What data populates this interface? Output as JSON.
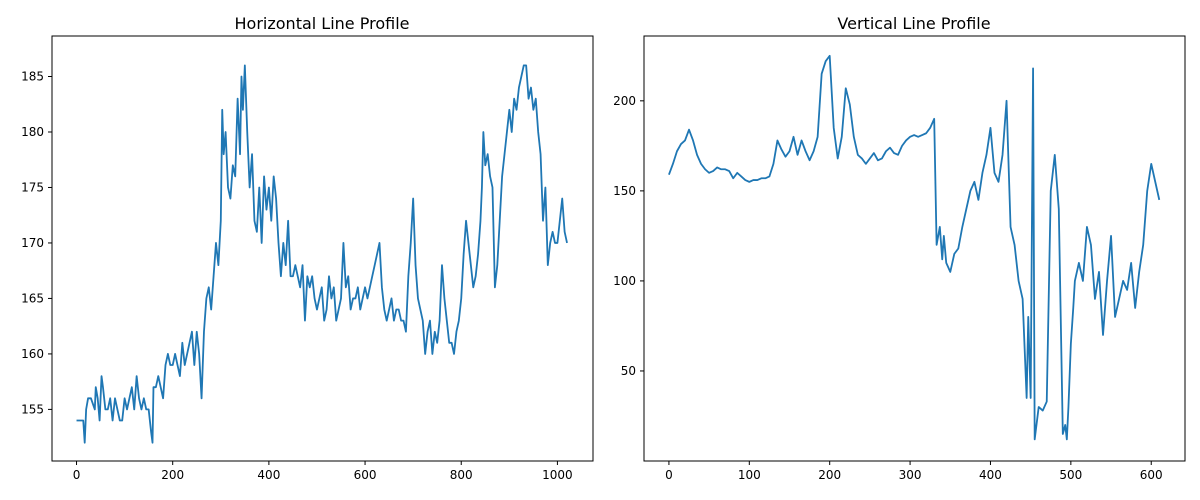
{
  "colors": {
    "series": "#1f77b4",
    "axis": "#000000",
    "background": "#ffffff"
  },
  "chart_data": [
    {
      "type": "line",
      "title": "Horizontal Line Profile",
      "xlabel": "",
      "ylabel": "",
      "xlim": [
        -51,
        1074
      ],
      "ylim": [
        150.35,
        188.65
      ],
      "xticks": [
        0,
        200,
        400,
        600,
        800,
        1000
      ],
      "yticks": [
        155,
        160,
        165,
        170,
        175,
        180,
        185
      ],
      "grid": false,
      "legend": "none",
      "series": [
        {
          "x": [
            0,
            10,
            14,
            17,
            20,
            24,
            30,
            38,
            40,
            44,
            48,
            52,
            55,
            60,
            65,
            70,
            75,
            80,
            85,
            90,
            95,
            100,
            105,
            110,
            115,
            120,
            125,
            130,
            135,
            140,
            145,
            150,
            155,
            158,
            160,
            165,
            170,
            175,
            180,
            185,
            190,
            195,
            200,
            205,
            210,
            215,
            220,
            225,
            230,
            235,
            240,
            245,
            250,
            255,
            260,
            265,
            270,
            275,
            280,
            285,
            290,
            295,
            300,
            303,
            306,
            310,
            315,
            320,
            325,
            330,
            335,
            340,
            343,
            346,
            350,
            355,
            360,
            365,
            370,
            375,
            380,
            385,
            390,
            395,
            400,
            405,
            410,
            415,
            420,
            425,
            430,
            435,
            440,
            445,
            450,
            455,
            460,
            465,
            470,
            475,
            480,
            485,
            490,
            495,
            500,
            505,
            510,
            515,
            520,
            525,
            530,
            535,
            540,
            545,
            550,
            555,
            560,
            565,
            570,
            575,
            580,
            585,
            590,
            595,
            600,
            605,
            610,
            615,
            620,
            625,
            630,
            635,
            640,
            645,
            650,
            655,
            660,
            665,
            670,
            675,
            680,
            685,
            690,
            695,
            700,
            705,
            710,
            715,
            720,
            725,
            730,
            735,
            740,
            745,
            750,
            755,
            760,
            765,
            770,
            775,
            780,
            785,
            790,
            795,
            800,
            805,
            810,
            815,
            820,
            825,
            830,
            835,
            840,
            843,
            846,
            850,
            855,
            860,
            865,
            870,
            875,
            880,
            885,
            890,
            895,
            900,
            905,
            910,
            915,
            920,
            925,
            930,
            935,
            940,
            945,
            950,
            955,
            960,
            965,
            970,
            975,
            980,
            985,
            990,
            995,
            1000,
            1005,
            1010,
            1015,
            1020
          ],
          "y": [
            154,
            154,
            154,
            152,
            155,
            156,
            156,
            155,
            157,
            156,
            154,
            158,
            157,
            155,
            155,
            156,
            154,
            156,
            155,
            154,
            154,
            156,
            155,
            156,
            157,
            155,
            158,
            156,
            155,
            156,
            155,
            155,
            153,
            152,
            157,
            157,
            158,
            157,
            156,
            159,
            160,
            159,
            159,
            160,
            159,
            158,
            161,
            159,
            160,
            161,
            162,
            159,
            162,
            160,
            156,
            162,
            165,
            166,
            164,
            167,
            170,
            168,
            172,
            182,
            178,
            180,
            175,
            174,
            177,
            176,
            183,
            178,
            185,
            182,
            186,
            180,
            175,
            178,
            172,
            171,
            175,
            170,
            176,
            173,
            175,
            172,
            176,
            174,
            170,
            167,
            170,
            168,
            172,
            167,
            167,
            168,
            167,
            166,
            168,
            163,
            167,
            166,
            167,
            165,
            164,
            165,
            166,
            163,
            164,
            167,
            165,
            166,
            163,
            164,
            165,
            170,
            166,
            167,
            164,
            165,
            165,
            166,
            164,
            165,
            166,
            165,
            166,
            167,
            168,
            169,
            170,
            166,
            164,
            163,
            164,
            165,
            163,
            164,
            164,
            163,
            163,
            162,
            167,
            170,
            174,
            168,
            165,
            164,
            163,
            160,
            162,
            163,
            160,
            162,
            161,
            163,
            168,
            165,
            163,
            161,
            161,
            160,
            162,
            163,
            165,
            169,
            172,
            170,
            168,
            166,
            167,
            169,
            172,
            175,
            180,
            177,
            178,
            176,
            175,
            166,
            168,
            172,
            176,
            178,
            180,
            182,
            180,
            183,
            182,
            184,
            185,
            186,
            186,
            183,
            184,
            182,
            183,
            180,
            178,
            172,
            175,
            168,
            170,
            171,
            170,
            170,
            172,
            174,
            171,
            170
          ]
        }
      ]
    },
    {
      "type": "line",
      "title": "Vertical Line Profile",
      "xlabel": "",
      "ylabel": "",
      "xlim": [
        -31,
        642
      ],
      "ylim": [
        0,
        236
      ],
      "xticks": [
        0,
        100,
        200,
        300,
        400,
        500,
        600
      ],
      "yticks": [
        50,
        100,
        150,
        200
      ],
      "grid": false,
      "legend": "none",
      "series": [
        {
          "x": [
            0,
            5,
            10,
            15,
            20,
            25,
            30,
            35,
            40,
            45,
            50,
            55,
            60,
            65,
            70,
            75,
            80,
            85,
            90,
            95,
            100,
            105,
            110,
            115,
            120,
            125,
            130,
            135,
            140,
            145,
            150,
            155,
            160,
            165,
            170,
            175,
            180,
            185,
            190,
            195,
            200,
            205,
            210,
            215,
            220,
            225,
            230,
            235,
            240,
            245,
            250,
            255,
            260,
            265,
            270,
            275,
            280,
            285,
            290,
            295,
            300,
            305,
            310,
            315,
            320,
            325,
            330,
            333,
            335,
            337,
            340,
            342,
            345,
            350,
            355,
            360,
            365,
            370,
            375,
            380,
            385,
            390,
            395,
            400,
            405,
            410,
            415,
            420,
            425,
            430,
            435,
            440,
            445,
            447,
            450,
            453,
            455,
            460,
            465,
            470,
            475,
            480,
            485,
            490,
            493,
            495,
            497,
            500,
            503,
            505,
            510,
            515,
            520,
            525,
            530,
            535,
            540,
            545,
            550,
            555,
            560,
            565,
            570,
            575,
            580,
            585,
            590,
            595,
            600,
            605,
            610
          ],
          "y": [
            159,
            165,
            172,
            176,
            178,
            184,
            178,
            170,
            165,
            162,
            160,
            161,
            163,
            162,
            162,
            161,
            157,
            160,
            158,
            156,
            155,
            156,
            156,
            157,
            157,
            158,
            165,
            178,
            173,
            169,
            172,
            180,
            170,
            178,
            172,
            167,
            172,
            180,
            215,
            222,
            225,
            185,
            168,
            180,
            207,
            198,
            180,
            170,
            168,
            165,
            168,
            171,
            167,
            168,
            172,
            174,
            171,
            170,
            175,
            178,
            180,
            181,
            180,
            181,
            182,
            185,
            190,
            120,
            125,
            130,
            112,
            125,
            110,
            105,
            115,
            118,
            130,
            140,
            150,
            155,
            145,
            160,
            170,
            185,
            160,
            155,
            170,
            200,
            130,
            120,
            100,
            90,
            35,
            80,
            35,
            218,
            12,
            30,
            28,
            33,
            150,
            170,
            140,
            15,
            20,
            12,
            30,
            65,
            85,
            100,
            110,
            100,
            130,
            120,
            90,
            105,
            70,
            100,
            125,
            80,
            90,
            100,
            95,
            110,
            85,
            105,
            120,
            150,
            165,
            155,
            145
          ]
        }
      ]
    }
  ]
}
